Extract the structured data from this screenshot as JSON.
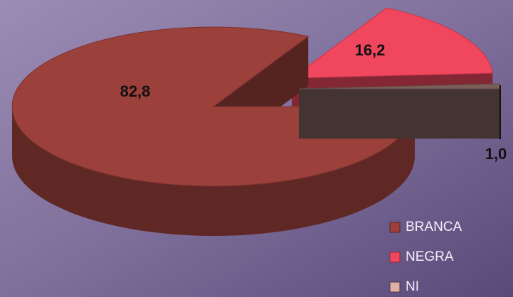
{
  "chart_data": {
    "type": "pie",
    "categories": [
      "BRANCA",
      "NEGRA",
      "NI"
    ],
    "values": [
      82.8,
      16.2,
      1.0
    ],
    "value_labels": [
      "82,8",
      "16,2",
      "1,0"
    ],
    "colors": [
      "#9b403b",
      "#f0465e",
      "#7a5e5a"
    ],
    "legend": "lower right"
  }
}
